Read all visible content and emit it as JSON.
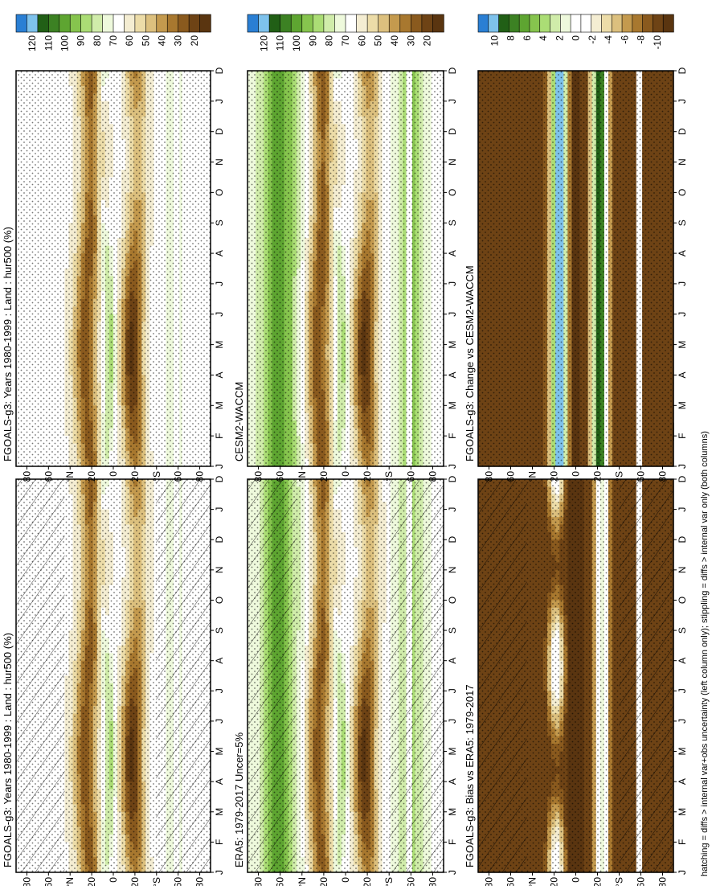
{
  "footer_note": "hatching = diffs > internal var+obs uncertainty (left column only); stippling = diffs > internal var only (both columns)",
  "colors": {
    "abs": [
      "#5a3510",
      "#6e4315",
      "#8a5a1e",
      "#a8782f",
      "#c49a4e",
      "#dcc07e",
      "#ecdca8",
      "#f4edd2",
      "#ffffff",
      "#eef9dc",
      "#d0ecaa",
      "#abdd75",
      "#86c44e",
      "#5ea531",
      "#3c8123",
      "#215f16",
      "#7ec2ec",
      "#2a7fd4"
    ],
    "diff": [
      "#5a3510",
      "#6e4315",
      "#8a5a1e",
      "#a8782f",
      "#c49a4e",
      "#dcc07e",
      "#ecdca8",
      "#f4edd2",
      "#ffffff",
      "#ffffff",
      "#eef9dc",
      "#d0ecaa",
      "#abdd75",
      "#86c44e",
      "#5ea531",
      "#3c8123",
      "#215f16",
      "#7ec2ec",
      "#2a7fd4"
    ]
  },
  "chart_data": [
    {
      "id": "p1",
      "type": "heatmap",
      "title": "FGOALS-g3: Years 1980-1999 : Land : hur500 (%)",
      "x_tick_labels": [
        "J",
        "F",
        "M",
        "A",
        "M",
        "J",
        "J",
        "A",
        "S",
        "O",
        "N",
        "D",
        "J",
        "D"
      ],
      "y_tick_labels": [
        "80",
        "60",
        "°N",
        "20",
        "0",
        "20",
        "°S",
        "60",
        "80"
      ],
      "colorbar": {
        "labels": [
          "120",
          "110",
          "100",
          "90",
          "80",
          "70",
          "60",
          "50",
          "40",
          "30",
          "20"
        ],
        "levels": [
          20,
          25,
          30,
          35,
          40,
          45,
          50,
          55,
          60,
          65,
          70,
          75,
          80,
          85,
          90,
          95,
          100,
          110,
          120
        ]
      },
      "overlay": "hatching+stippling",
      "field": "model",
      "months": [
        "J",
        "F",
        "M",
        "A",
        "M",
        "J",
        "J",
        "A",
        "S",
        "O",
        "N",
        "D",
        "J"
      ],
      "lat_south_to_north": [
        -90,
        -80,
        -70,
        -60,
        -50,
        -40,
        -30,
        -20,
        -10,
        0,
        10,
        20,
        30,
        40,
        50,
        60,
        70,
        80,
        90
      ]
    },
    {
      "id": "p2",
      "type": "heatmap",
      "title": "FGOALS-g3: Years 1980-1999 : Land : hur500 (%)",
      "x_tick_labels": [
        "J",
        "F",
        "M",
        "A",
        "M",
        "J",
        "J",
        "A",
        "S",
        "O",
        "N",
        "D",
        "J",
        "D"
      ],
      "y_tick_labels": [
        "80",
        "60",
        "°N",
        "20",
        "0",
        "20",
        "°S",
        "60",
        "80"
      ],
      "colorbar": {
        "labels": [
          "120",
          "110",
          "100",
          "90",
          "80",
          "70",
          "60",
          "50",
          "40",
          "30",
          "20"
        ],
        "levels": [
          20,
          25,
          30,
          35,
          40,
          45,
          50,
          55,
          60,
          65,
          70,
          75,
          80,
          85,
          90,
          95,
          100,
          110,
          120
        ]
      },
      "overlay": "stippling",
      "field": "model"
    },
    {
      "id": "p3",
      "type": "heatmap",
      "title": "ERA5: 1979-2017 Uncer=5%",
      "x_tick_labels": [
        "J",
        "F",
        "M",
        "A",
        "M",
        "J",
        "J",
        "A",
        "S",
        "O",
        "N",
        "D",
        "J",
        "D"
      ],
      "y_tick_labels": [
        "80",
        "60",
        "°N",
        "20",
        "0",
        "20",
        "°S",
        "60",
        "80"
      ],
      "colorbar": {
        "labels": [
          "120",
          "110",
          "100",
          "90",
          "80",
          "70",
          "60",
          "50",
          "40",
          "30",
          "20"
        ],
        "levels": [
          20,
          25,
          30,
          35,
          40,
          45,
          50,
          55,
          60,
          65,
          70,
          75,
          80,
          85,
          90,
          95,
          100,
          110,
          120
        ]
      },
      "overlay": "hatching+stippling",
      "field": "obs"
    },
    {
      "id": "p4",
      "type": "heatmap",
      "title": "CESM2-WACCM",
      "x_tick_labels": [
        "J",
        "F",
        "M",
        "A",
        "M",
        "J",
        "J",
        "A",
        "S",
        "O",
        "N",
        "D",
        "J",
        "D"
      ],
      "y_tick_labels": [
        "80",
        "60",
        "°N",
        "20",
        "0",
        "20",
        "°S",
        "60",
        "80"
      ],
      "colorbar": {
        "labels": [
          "120",
          "110",
          "100",
          "90",
          "80",
          "70",
          "60",
          "50",
          "40",
          "30",
          "20"
        ],
        "levels": [
          20,
          25,
          30,
          35,
          40,
          45,
          50,
          55,
          60,
          65,
          70,
          75,
          80,
          85,
          90,
          95,
          100,
          110,
          120
        ]
      },
      "overlay": "stippling",
      "field": "ref"
    },
    {
      "id": "p5",
      "type": "heatmap",
      "title": "FGOALS-g3: Bias vs ERA5: 1979-2017",
      "x_tick_labels": [
        "J",
        "F",
        "M",
        "A",
        "M",
        "J",
        "J",
        "A",
        "S",
        "O",
        "N",
        "D",
        "J",
        "D"
      ],
      "y_tick_labels": [
        "80",
        "60",
        "°N",
        "20",
        "0",
        "20",
        "°S",
        "60",
        "80"
      ],
      "colorbar": {
        "labels": [
          "10",
          "8",
          "6",
          "4",
          "2",
          "0",
          "-2",
          "-4",
          "-6",
          "-8",
          "-10"
        ],
        "levels": [
          -12,
          -10,
          -9,
          -8,
          -7,
          -6,
          -5,
          -4,
          -3,
          -2,
          -1,
          0,
          1,
          2,
          3,
          4,
          5,
          6,
          8,
          10,
          12
        ]
      },
      "overlay": "hatching+stippling",
      "field": "bias"
    },
    {
      "id": "p6",
      "type": "heatmap",
      "title": "FGOALS-g3: Change vs CESM2-WACCM",
      "x_tick_labels": [
        "J",
        "F",
        "M",
        "A",
        "M",
        "J",
        "J",
        "A",
        "S",
        "O",
        "N",
        "D",
        "J",
        "D"
      ],
      "y_tick_labels": [
        "80",
        "60",
        "°N",
        "20",
        "0",
        "20",
        "°S",
        "60",
        "80"
      ],
      "colorbar": {
        "labels": [
          "10",
          "8",
          "6",
          "4",
          "2",
          "0",
          "-2",
          "-4",
          "-6",
          "-8",
          "-10"
        ],
        "levels": [
          -12,
          -10,
          -9,
          -8,
          -7,
          -6,
          -5,
          -4,
          -3,
          -2,
          -1,
          0,
          1,
          2,
          3,
          4,
          5,
          6,
          8,
          10,
          12
        ]
      },
      "overlay": "stippling",
      "field": "change"
    }
  ]
}
